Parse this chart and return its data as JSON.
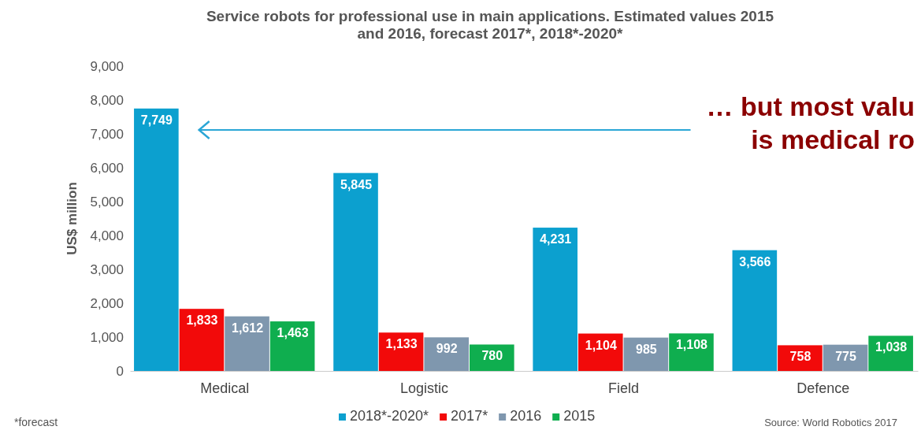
{
  "chart_data": {
    "type": "bar",
    "title": "Service robots for professional use in main applications. Estimated values 2015\nand 2016, forecast 2017*, 2018*-2020*",
    "ylabel": "US$ million",
    "categories": [
      "Medical",
      "Logistic",
      "Field",
      "Defence"
    ],
    "series": [
      {
        "name": "2018*-2020*",
        "color": "#0ca0cf",
        "values": [
          7749,
          5845,
          4231,
          3566
        ],
        "value_labels": [
          "7,749",
          "5,845",
          "4,231",
          "3,566"
        ]
      },
      {
        "name": "2017*",
        "color": "#f20a0a",
        "values": [
          1833,
          1133,
          1104,
          758
        ],
        "value_labels": [
          "1,833",
          "1,133",
          "1,104",
          "758"
        ]
      },
      {
        "name": "2016",
        "color": "#7f97ae",
        "values": [
          1612,
          992,
          985,
          775
        ],
        "value_labels": [
          "1,612",
          "992",
          "985",
          "775"
        ]
      },
      {
        "name": "2015",
        "color": "#0fae4f",
        "values": [
          1463,
          780,
          1108,
          1038
        ],
        "value_labels": [
          "1,463",
          "780",
          "1,108",
          "1,038"
        ]
      }
    ],
    "ylim": [
      0,
      9000
    ],
    "yticks": [
      0,
      {
        "value": 1000,
        "label": "1,000"
      },
      {
        "value": 2000,
        "label": "2,000"
      },
      {
        "value": 3000,
        "label": "3,000"
      },
      {
        "value": 4000,
        "label": "4,000"
      },
      {
        "value": 5000,
        "label": "5,000"
      },
      {
        "value": 6000,
        "label": "6,000"
      },
      {
        "value": 7000,
        "label": "7,000"
      },
      {
        "value": 8000,
        "label": "8,000"
      },
      {
        "value": 9000,
        "label": "9,000"
      }
    ],
    "legend": "bottom",
    "annotations": [
      "… but most valu\nis medical ro",
      "*forecast",
      "Source: World Robotics 2017"
    ]
  }
}
